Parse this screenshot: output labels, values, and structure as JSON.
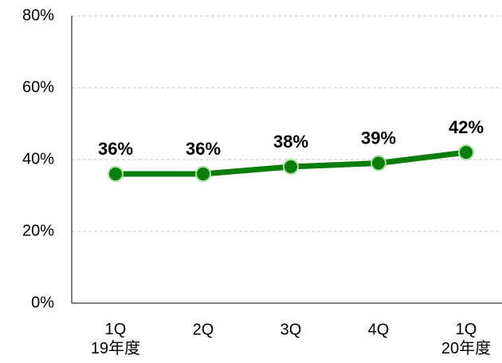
{
  "chart_data": {
    "type": "line",
    "categories": [
      "1Q\n19年度",
      "2Q",
      "3Q",
      "4Q",
      "1Q\n20年度"
    ],
    "series": [
      {
        "color": "#0b7d0b",
        "values": [
          36,
          36,
          38,
          39,
          42
        ],
        "value_labels": [
          "36%",
          "36%",
          "38%",
          "39%",
          "42%"
        ]
      }
    ],
    "ylim": [
      0,
      80
    ],
    "yticks": [
      {
        "value": 0,
        "label": "0%"
      },
      {
        "value": 20,
        "label": "20%"
      },
      {
        "value": 40,
        "label": "40%"
      },
      {
        "value": 60,
        "label": "60%"
      },
      {
        "value": 80,
        "label": "80%"
      }
    ],
    "grid": true
  }
}
